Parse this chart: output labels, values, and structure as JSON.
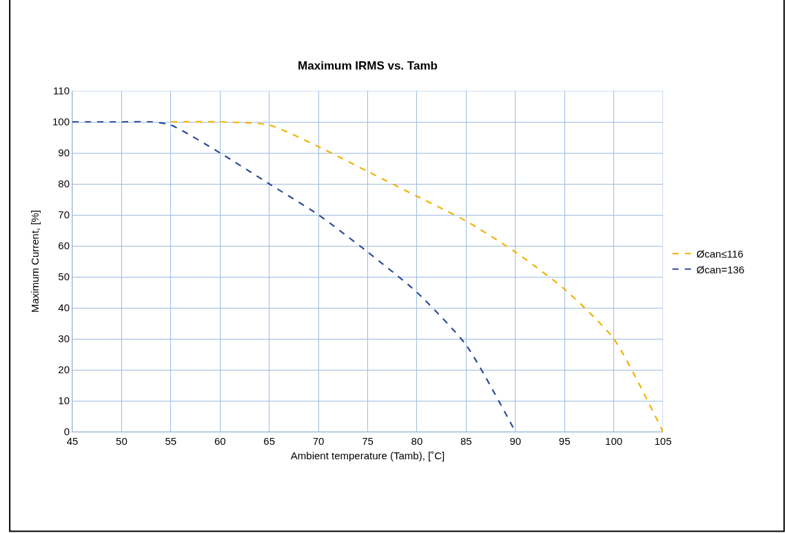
{
  "chart_data": {
    "type": "line",
    "title": "Maximum IRMS vs. Tamb",
    "xlabel": "Ambient temperature (Tamb), [˚C]",
    "ylabel": "Maximum Current, [%]",
    "series": [
      {
        "name": "Øcan≤116",
        "color": "#f2b100",
        "x": [
          55,
          60,
          65,
          70,
          75,
          80,
          85,
          90,
          95,
          100,
          105
        ],
        "values": [
          100,
          100,
          99,
          92,
          84,
          76,
          68,
          58,
          46,
          30,
          0
        ]
      },
      {
        "name": "Øcan=136",
        "color": "#2e4a9a",
        "x": [
          45,
          50,
          53,
          55,
          60,
          65,
          70,
          75,
          80,
          85,
          90
        ],
        "values": [
          100,
          100,
          100,
          99,
          90,
          80,
          70,
          58,
          45,
          28,
          0
        ]
      }
    ],
    "xlim": [
      45,
      105
    ],
    "xticks": [
      45,
      50,
      55,
      60,
      65,
      70,
      75,
      80,
      85,
      90,
      95,
      100,
      105
    ],
    "ylim": [
      0,
      110
    ],
    "yticks": [
      0,
      10,
      20,
      30,
      40,
      50,
      60,
      70,
      80,
      90,
      100,
      110
    ],
    "grid": true,
    "legend": "right",
    "line_style": "dashed",
    "marker": "none"
  }
}
